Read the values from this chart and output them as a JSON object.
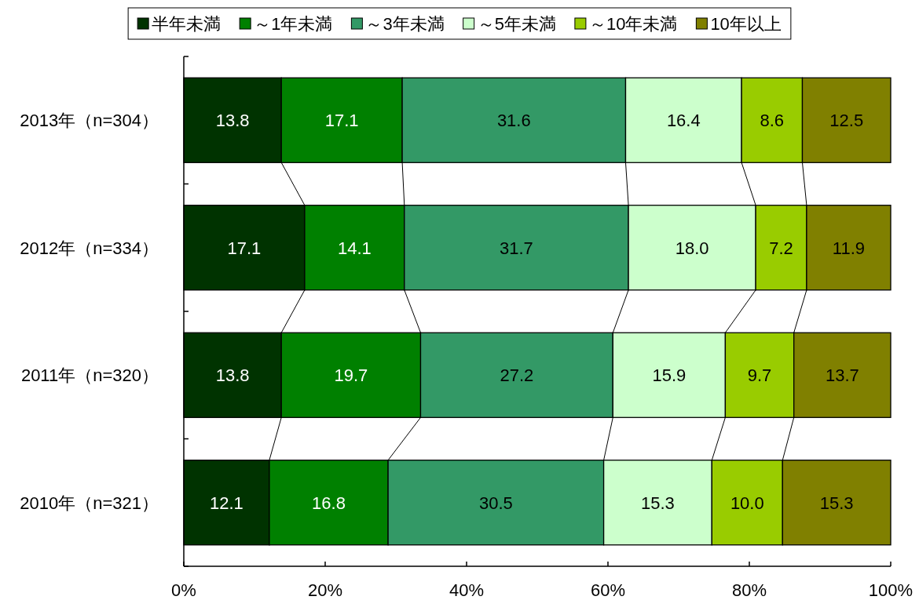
{
  "chart_data": {
    "type": "bar",
    "orientation": "horizontal",
    "stacked": true,
    "legend": "top",
    "grid": false,
    "categories": [
      "2013年（n=304）",
      "2012年（n=334）",
      "2011年（n=320）",
      "2010年（n=321）"
    ],
    "series": [
      {
        "name": "半年未満",
        "color": "#003300",
        "values": [
          13.8,
          17.1,
          13.8,
          12.1
        ],
        "value_labels": [
          "13.8",
          "17.1",
          "13.8",
          "12.1"
        ]
      },
      {
        "name": "～1年未満",
        "color": "#008000",
        "values": [
          17.1,
          14.1,
          19.7,
          16.8
        ],
        "value_labels": [
          "17.1",
          "14.1",
          "19.7",
          "16.8"
        ]
      },
      {
        "name": "～3年未満",
        "color": "#339966",
        "values": [
          31.6,
          31.7,
          27.2,
          30.5
        ],
        "value_labels": [
          "31.6",
          "31.7",
          "27.2",
          "30.5"
        ]
      },
      {
        "name": "～5年未満",
        "color": "#ccffcc",
        "values": [
          16.4,
          18.0,
          15.9,
          15.3
        ],
        "value_labels": [
          "16.4",
          "18.0",
          "15.9",
          "15.3"
        ]
      },
      {
        "name": "～10年未満",
        "color": "#99cc00",
        "values": [
          8.6,
          7.2,
          9.7,
          10.0
        ],
        "value_labels": [
          "8.6",
          "7.2",
          "9.7",
          "10.0"
        ]
      },
      {
        "name": "10年以上",
        "color": "#808000",
        "values": [
          12.5,
          11.9,
          13.7,
          15.3
        ],
        "value_labels": [
          "12.5",
          "11.9",
          "13.7",
          "15.3"
        ]
      }
    ],
    "xlim": [
      0,
      100
    ],
    "xticks": [
      {
        "value": 0,
        "label": "0%"
      },
      {
        "value": 20,
        "label": "20%"
      },
      {
        "value": 40,
        "label": "40%"
      },
      {
        "value": 60,
        "label": "60%"
      },
      {
        "value": 80,
        "label": "80%"
      },
      {
        "value": 100,
        "label": "100%"
      }
    ]
  }
}
